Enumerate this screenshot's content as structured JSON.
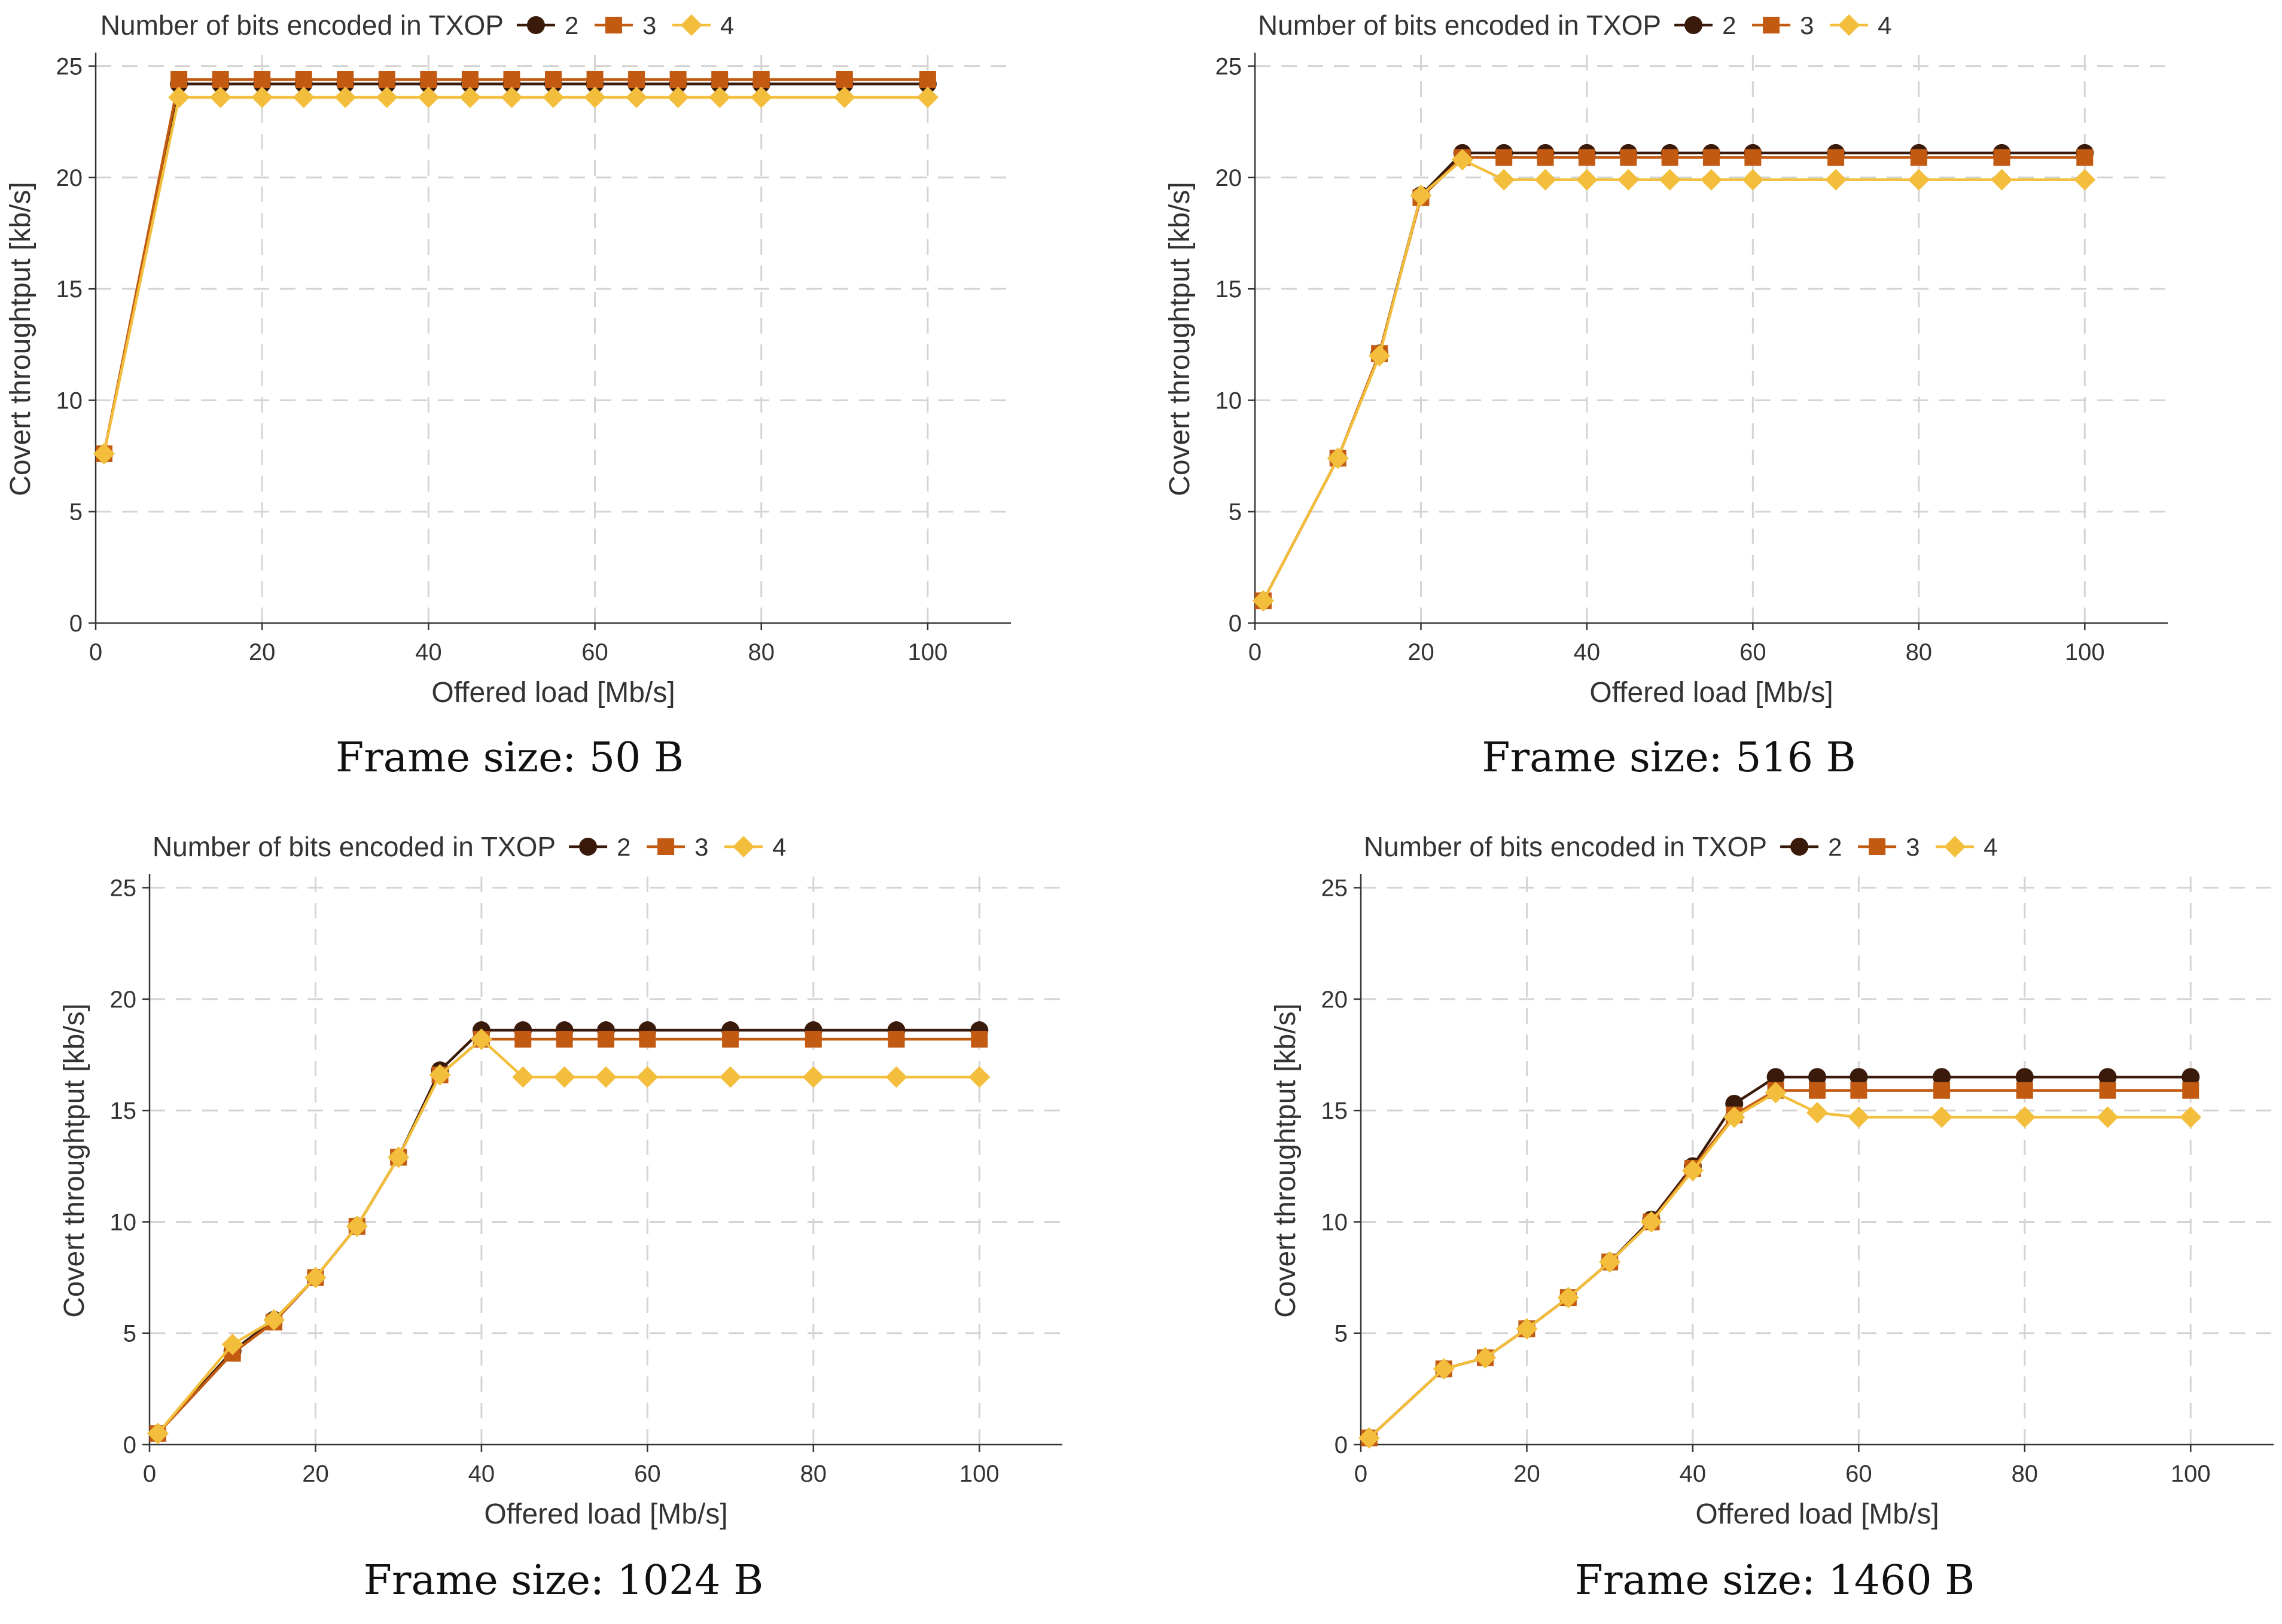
{
  "colors": {
    "bits_2": "#3a1a0a",
    "bits_3": "#c25a12",
    "bits_4": "#f2be3c",
    "grid": "#d4d4d4",
    "axis": "#333333"
  },
  "chart_data": [
    {
      "type": "line",
      "caption": "Frame size: 50 B",
      "legend_title": "Number of bits encoded in TXOP",
      "legend_position": "top",
      "xlabel": "Offered load [Mb/s]",
      "ylabel": "Covert throughtput [kb/s]",
      "xlim": [
        0,
        110
      ],
      "ylim": [
        0,
        25.5
      ],
      "xticks": [
        0,
        20,
        40,
        60,
        80,
        100
      ],
      "yticks": [
        0,
        5,
        10,
        15,
        20,
        25
      ],
      "grid": true,
      "x": [
        1,
        10,
        15,
        20,
        25,
        30,
        35,
        40,
        45,
        50,
        55,
        60,
        65,
        70,
        75,
        80,
        90,
        100
      ],
      "series": [
        {
          "name": "2",
          "marker": "circle",
          "values": [
            7.6,
            24.2,
            24.2,
            24.2,
            24.2,
            24.2,
            24.2,
            24.2,
            24.2,
            24.2,
            24.2,
            24.2,
            24.2,
            24.2,
            24.2,
            24.2,
            24.2,
            24.2
          ]
        },
        {
          "name": "3",
          "marker": "square",
          "values": [
            7.6,
            24.4,
            24.4,
            24.4,
            24.4,
            24.4,
            24.4,
            24.4,
            24.4,
            24.4,
            24.4,
            24.4,
            24.4,
            24.4,
            24.4,
            24.4,
            24.4,
            24.4
          ]
        },
        {
          "name": "4",
          "marker": "diamond",
          "values": [
            7.6,
            23.6,
            23.6,
            23.6,
            23.6,
            23.6,
            23.6,
            23.6,
            23.6,
            23.6,
            23.6,
            23.6,
            23.6,
            23.6,
            23.6,
            23.6,
            23.6,
            23.6
          ]
        }
      ]
    },
    {
      "type": "line",
      "caption": "Frame size: 516 B",
      "legend_title": "Number of bits encoded in TXOP",
      "legend_position": "top",
      "xlabel": "Offered load [Mb/s]",
      "ylabel": "Covert throughtput [kb/s]",
      "xlim": [
        0,
        110
      ],
      "ylim": [
        0,
        25.5
      ],
      "xticks": [
        0,
        20,
        40,
        60,
        80,
        100
      ],
      "yticks": [
        0,
        5,
        10,
        15,
        20,
        25
      ],
      "grid": true,
      "x": [
        1,
        10,
        15,
        20,
        25,
        30,
        35,
        40,
        45,
        50,
        55,
        60,
        70,
        80,
        90,
        100
      ],
      "series": [
        {
          "name": "2",
          "marker": "circle",
          "values": [
            1.0,
            7.4,
            12.1,
            19.2,
            21.1,
            21.1,
            21.1,
            21.1,
            21.1,
            21.1,
            21.1,
            21.1,
            21.1,
            21.1,
            21.1,
            21.1
          ]
        },
        {
          "name": "3",
          "marker": "square",
          "values": [
            1.0,
            7.4,
            12.1,
            19.1,
            20.9,
            20.9,
            20.9,
            20.9,
            20.9,
            20.9,
            20.9,
            20.9,
            20.9,
            20.9,
            20.9,
            20.9
          ]
        },
        {
          "name": "4",
          "marker": "diamond",
          "values": [
            1.0,
            7.4,
            12.0,
            19.2,
            20.8,
            19.9,
            19.9,
            19.9,
            19.9,
            19.9,
            19.9,
            19.9,
            19.9,
            19.9,
            19.9,
            19.9
          ]
        }
      ]
    },
    {
      "type": "line",
      "caption": "Frame size: 1024 B",
      "legend_title": "Number of bits encoded in TXOP",
      "legend_position": "top",
      "xlabel": "Offered load [Mb/s]",
      "ylabel": "Covert throughtput [kb/s]",
      "xlim": [
        0,
        110
      ],
      "ylim": [
        0,
        25.5
      ],
      "xticks": [
        0,
        20,
        40,
        60,
        80,
        100
      ],
      "yticks": [
        0,
        5,
        10,
        15,
        20,
        25
      ],
      "grid": true,
      "x": [
        1,
        10,
        15,
        20,
        25,
        30,
        35,
        40,
        45,
        50,
        55,
        60,
        70,
        80,
        90,
        100
      ],
      "series": [
        {
          "name": "2",
          "marker": "circle",
          "values": [
            0.5,
            4.2,
            5.6,
            7.5,
            9.8,
            12.9,
            16.8,
            18.6,
            18.6,
            18.6,
            18.6,
            18.6,
            18.6,
            18.6,
            18.6,
            18.6
          ]
        },
        {
          "name": "3",
          "marker": "square",
          "values": [
            0.5,
            4.1,
            5.5,
            7.5,
            9.8,
            12.9,
            16.6,
            18.2,
            18.2,
            18.2,
            18.2,
            18.2,
            18.2,
            18.2,
            18.2,
            18.2
          ]
        },
        {
          "name": "4",
          "marker": "diamond",
          "values": [
            0.5,
            4.5,
            5.6,
            7.5,
            9.8,
            12.9,
            16.6,
            18.2,
            16.5,
            16.5,
            16.5,
            16.5,
            16.5,
            16.5,
            16.5,
            16.5
          ]
        }
      ]
    },
    {
      "type": "line",
      "caption": "Frame size: 1460 B",
      "legend_title": "Number of bits encoded in TXOP",
      "legend_position": "top",
      "xlabel": "Offered load [Mb/s]",
      "ylabel": "Covert throughtput [kb/s]",
      "xlim": [
        0,
        110
      ],
      "ylim": [
        0,
        25.5
      ],
      "xticks": [
        0,
        20,
        40,
        60,
        80,
        100
      ],
      "yticks": [
        0,
        5,
        10,
        15,
        20,
        25
      ],
      "grid": true,
      "x": [
        1,
        10,
        15,
        20,
        25,
        30,
        35,
        40,
        45,
        50,
        55,
        60,
        70,
        80,
        90,
        100
      ],
      "series": [
        {
          "name": "2",
          "marker": "circle",
          "values": [
            0.3,
            3.4,
            3.9,
            5.2,
            6.6,
            8.2,
            10.1,
            12.5,
            15.3,
            16.5,
            16.5,
            16.5,
            16.5,
            16.5,
            16.5,
            16.5
          ]
        },
        {
          "name": "3",
          "marker": "square",
          "values": [
            0.3,
            3.4,
            3.9,
            5.2,
            6.6,
            8.2,
            10.0,
            12.4,
            14.8,
            15.9,
            15.9,
            15.9,
            15.9,
            15.9,
            15.9,
            15.9
          ]
        },
        {
          "name": "4",
          "marker": "diamond",
          "values": [
            0.3,
            3.4,
            3.9,
            5.2,
            6.6,
            8.2,
            10.0,
            12.3,
            14.7,
            15.8,
            14.9,
            14.7,
            14.7,
            14.7,
            14.7,
            14.7
          ]
        }
      ]
    }
  ]
}
